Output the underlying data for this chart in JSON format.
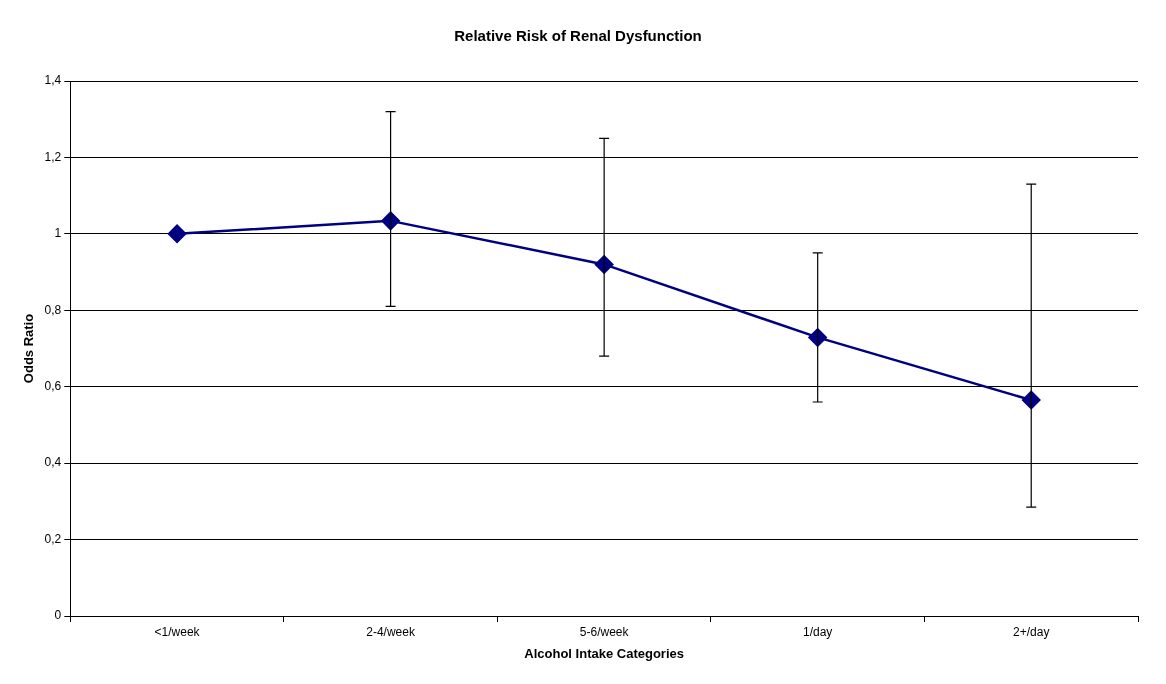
{
  "chart_data": {
    "type": "line",
    "title": "Relative Risk of Renal Dysfunction",
    "xlabel": "Alcohol Intake Categories",
    "ylabel": "Odds Ratio",
    "categories": [
      "<1/week",
      "2-4/week",
      "5-6/week",
      "1/day",
      "2+/day"
    ],
    "series": [
      {
        "color": "#000080",
        "values": [
          1,
          1.034,
          0.92,
          0.729,
          0.565
        ],
        "errors": [
          null,
          [
            0.81,
            1.32
          ],
          [
            0.68,
            1.25
          ],
          [
            0.56,
            0.95
          ],
          [
            0.285,
            1.13
          ]
        ]
      }
    ],
    "ylim": [
      0,
      1.4
    ],
    "yticks": [
      {
        "value": 0,
        "label": "0"
      },
      {
        "value": 0.2,
        "label": "0,2"
      },
      {
        "value": 0.4,
        "label": "0,4"
      },
      {
        "value": 0.6,
        "label": "0,6"
      },
      {
        "value": 0.8,
        "label": "0,8"
      },
      {
        "value": 1,
        "label": "1"
      },
      {
        "value": 1.2,
        "label": "1,2"
      },
      {
        "value": 1.4,
        "label": "1,4"
      }
    ],
    "grid": "y",
    "legend": false,
    "marker": "diamond",
    "line_style": "solid"
  }
}
